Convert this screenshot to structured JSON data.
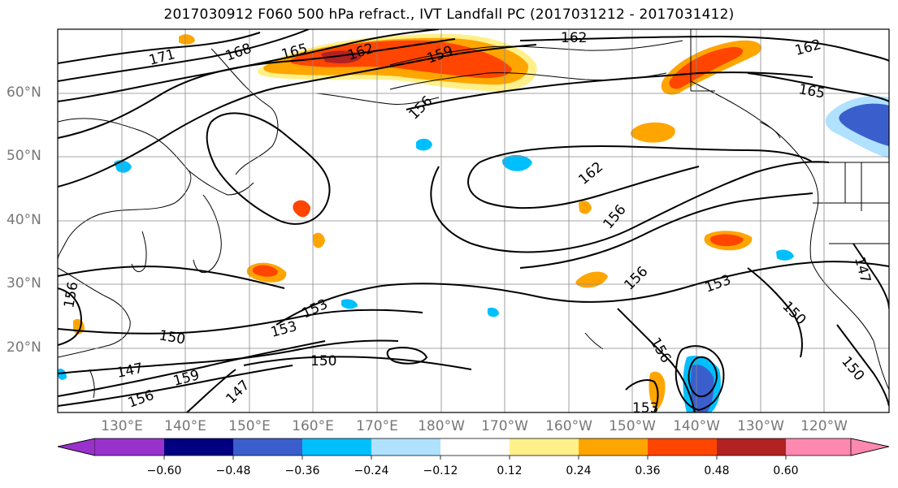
{
  "title": "2017030912 F060 500 hPa refract., IVT Landfall PC (2017031212 - 2017031412)",
  "map": {
    "lat_labels": [
      "60°N",
      "50°N",
      "40°N",
      "30°N",
      "20°N"
    ],
    "lon_labels": [
      "130°E",
      "140°E",
      "150°E",
      "160°E",
      "170°E",
      "180°W",
      "170°W",
      "160°W",
      "150°W",
      "140°W",
      "130°W",
      "120°W"
    ],
    "contour_labels": [
      "171",
      "168",
      "165",
      "162",
      "159",
      "156",
      "162",
      "162",
      "165",
      "162",
      "156",
      "156",
      "153",
      "153",
      "153",
      "150",
      "150",
      "150",
      "147",
      "159",
      "156",
      "147",
      "156",
      "156",
      "150",
      "147",
      "153",
      "156",
      "156"
    ],
    "colors": {
      "neg_060": "#9932cc",
      "neg_048": "#000080",
      "neg_036": "#3a5fcd",
      "neg_024": "#00bfff",
      "neg_012": "#b0e2ff",
      "zero": "#ffffff",
      "pos_012": "#fff08a",
      "pos_024": "#ffa500",
      "pos_036": "#ff4500",
      "pos_048": "#b22222",
      "pos_060": "#ff88b0"
    }
  },
  "colorbar": {
    "ticks": [
      "−0.60",
      "−0.48",
      "−0.36",
      "−0.24",
      "−0.12",
      "0.12",
      "0.24",
      "0.36",
      "0.48",
      "0.60"
    ]
  }
}
